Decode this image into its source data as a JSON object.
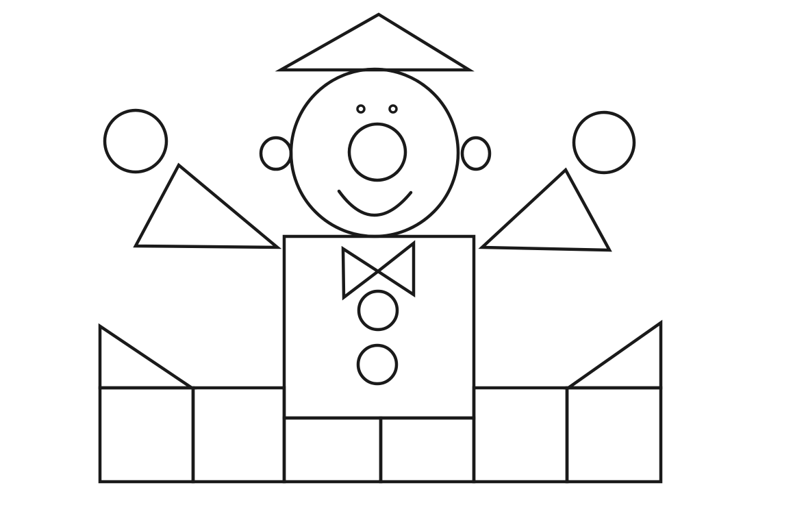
{
  "figure": {
    "subject": "geometric-shapes-clown",
    "line_color": "#1a1a1a",
    "background_color": "#ffffff"
  }
}
